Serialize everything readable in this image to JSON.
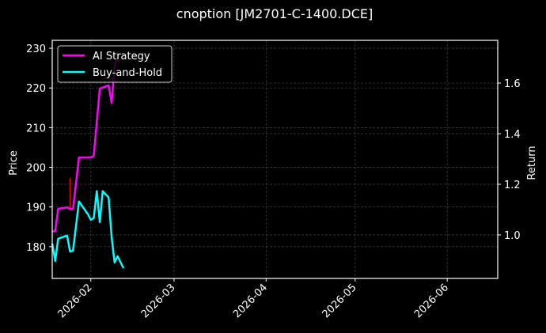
{
  "chart_data": {
    "type": "line",
    "title": "cnoption [JM2701-C-1400.DCE]",
    "xlabel": "",
    "ylabel": "Price",
    "y2label": "Return",
    "ylim": [
      172,
      232
    ],
    "y2lim": [
      0.828,
      1.769
    ],
    "xlim": [
      "2026-01-19",
      "2026-06-18"
    ],
    "grid": true,
    "legend_position": "upper left",
    "x_ticks": [
      "2026-02",
      "2026-03",
      "2026-04",
      "2026-05",
      "2026-06"
    ],
    "y_ticks": [
      180,
      190,
      200,
      210,
      220,
      230
    ],
    "y2_ticks": [
      "1.0",
      "1.2",
      "1.4",
      "1.6"
    ],
    "x": [
      "2026-01-19",
      "2026-01-20",
      "2026-01-21",
      "2026-01-22",
      "2026-01-23",
      "2026-01-26",
      "2026-01-27",
      "2026-01-28",
      "2026-01-29",
      "2026-01-30",
      "2026-02-02",
      "2026-02-03",
      "2026-02-04",
      "2026-02-05",
      "2026-02-06",
      "2026-02-09",
      "2026-02-10",
      "2026-02-11",
      "2026-02-12",
      "2026-02-13"
    ],
    "series": [
      {
        "name": "AI Strategy",
        "axis": "right",
        "color": "#ff00ff",
        "points": [
          [
            "2026-01-19",
            1.013
          ],
          [
            "2026-01-20",
            1.016
          ],
          [
            "2026-01-21",
            1.103
          ],
          [
            "2026-01-24",
            1.109
          ],
          [
            "2026-01-25",
            1.103
          ],
          [
            "2026-01-26",
            1.103
          ],
          [
            "2026-01-28",
            1.306
          ],
          [
            "2026-02-01",
            1.306
          ],
          [
            "2026-02-02",
            1.313
          ],
          [
            "2026-02-04",
            1.578
          ],
          [
            "2026-02-07",
            1.591
          ],
          [
            "2026-02-08",
            1.522
          ],
          [
            "2026-02-09",
            1.666
          ],
          [
            "2026-02-10",
            1.703
          ]
        ]
      },
      {
        "name": "Buy-and-Hold",
        "axis": "left",
        "color": "#00ffff",
        "points": [
          [
            "2026-01-19",
            180.8
          ],
          [
            "2026-01-20",
            176.5
          ],
          [
            "2026-01-20",
            176.4
          ],
          [
            "2026-01-21",
            182.0
          ],
          [
            "2026-01-24",
            182.8
          ],
          [
            "2026-01-25",
            178.8
          ],
          [
            "2026-01-26",
            179.0
          ],
          [
            "2026-01-28",
            191.4
          ],
          [
            "2026-01-31",
            188.2
          ],
          [
            "2026-02-01",
            186.8
          ],
          [
            "2026-02-02",
            187.2
          ],
          [
            "2026-02-03",
            194.0
          ],
          [
            "2026-02-04",
            186.2
          ],
          [
            "2026-02-05",
            194.0
          ],
          [
            "2026-02-07",
            192.4
          ],
          [
            "2026-02-08",
            182.4
          ],
          [
            "2026-02-09",
            176.0
          ],
          [
            "2026-02-10",
            177.6
          ],
          [
            "2026-02-12",
            174.6
          ]
        ]
      },
      {
        "name": "Price wick",
        "axis": "left",
        "color": "#ff0000",
        "points": [
          [
            "2026-01-25",
            197.4
          ],
          [
            "2026-01-25",
            189.8
          ]
        ]
      }
    ]
  },
  "legend": {
    "items": [
      {
        "label": "AI Strategy",
        "color": "#ff00ff"
      },
      {
        "label": "Buy-and-Hold",
        "color": "#00ffff"
      }
    ]
  },
  "colors": {
    "background": "#000000",
    "axes": "#ffffff",
    "grid": "#444444",
    "ai_strategy": "#ff00ff",
    "buy_and_hold": "#00ffff",
    "wick": "#ff0000"
  }
}
